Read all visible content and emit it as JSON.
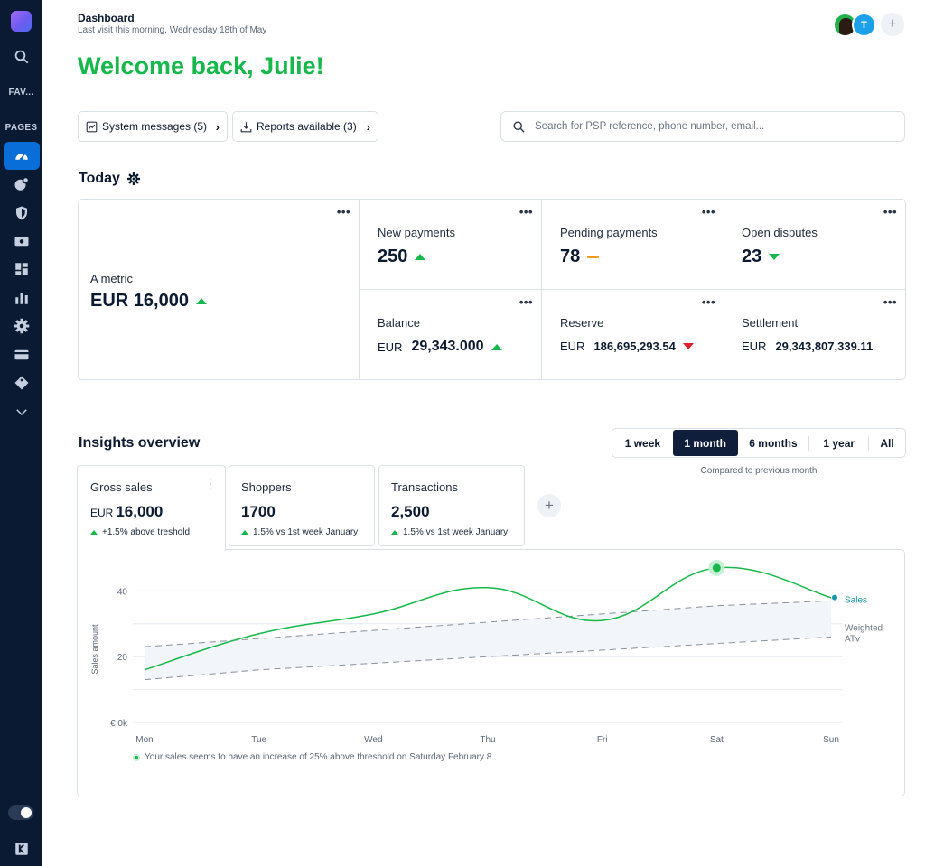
{
  "sidebar": {
    "fav_label": "FAV...",
    "pages_label": "PAGES",
    "icons": [
      "search-icon",
      "speedometer-icon",
      "pie-icon",
      "shield-icon",
      "cash-icon",
      "dashboard-grid-icon",
      "bar-chart-icon",
      "gear-icon",
      "card-icon",
      "tag-icon",
      "chevron-down-icon"
    ]
  },
  "header": {
    "title": "Dashboard",
    "subtitle": "Last visit this morning, Wednesday 18th of May",
    "avatar_initial": "T",
    "add_label": "+"
  },
  "welcome": "Welcome back, Julie!",
  "actions": {
    "system_messages": "System messages (5)",
    "reports_available": "Reports available (3)",
    "search_placeholder": "Search for PSP reference, phone number, email..."
  },
  "today": {
    "title": "Today",
    "dots": "•••",
    "main_metric": {
      "label": "A metric",
      "value": "EUR 16,000",
      "trend": "up"
    },
    "metrics": [
      {
        "label": "New payments",
        "value": "250",
        "currency": "",
        "trend": "up"
      },
      {
        "label": "Pending payments",
        "value": "78",
        "currency": "",
        "trend": "flat"
      },
      {
        "label": "Open disputes",
        "value": "23",
        "currency": "",
        "trend": "down"
      },
      {
        "label": "Balance",
        "value": "29,343.000",
        "currency": "EUR",
        "trend": "up"
      },
      {
        "label": "Reserve",
        "value": "186,695,293.54",
        "currency": "EUR",
        "trend": "down"
      },
      {
        "label": "Settlement",
        "value": "29,343,807,339.11",
        "currency": "EUR",
        "trend": "none"
      }
    ]
  },
  "insights": {
    "title": "Insights overview",
    "ranges": [
      "1 week",
      "1 month",
      "6 months",
      "1 year",
      "All"
    ],
    "selected_range": "1 month",
    "compared": "Compared to previous month",
    "tabs": [
      {
        "label": "Gross sales",
        "currency": "EUR",
        "value": "16,000",
        "note": "+1.5%  above treshold"
      },
      {
        "label": "Shoppers",
        "currency": "",
        "value": "1700",
        "note": "1.5%  vs 1st week January"
      },
      {
        "label": "Transactions",
        "currency": "",
        "value": "2,500",
        "note": "1.5%  vs 1st week January"
      }
    ],
    "add_tab": "+",
    "note": "Your sales seems to have an increase of 25% above threshold on Saturday February 8."
  },
  "chart_data": {
    "type": "line",
    "categories": [
      "Mon",
      "Tue",
      "Wed",
      "Thu",
      "Fri",
      "Sat",
      "Sun"
    ],
    "ylabel": "Sales amount",
    "y_ticks": [
      "€ 0k",
      "20",
      "40"
    ],
    "ylim": [
      0,
      50
    ],
    "series": [
      {
        "name": "Sales",
        "values": [
          16,
          27,
          33,
          41,
          31,
          47,
          38
        ],
        "color": "#17b84b"
      },
      {
        "name": "Weighted ATv",
        "values": [
          13,
          16,
          18,
          20,
          22,
          24,
          26
        ],
        "color": "#8a909b",
        "style": "dashed"
      }
    ],
    "band_upper": [
      23,
      25.5,
      28,
      30.5,
      33,
      35.5,
      37
    ],
    "highlight": {
      "category": "Sat",
      "value": 47
    },
    "grid": true,
    "colors": {
      "sales": "#17b84b",
      "weighted": "#8a909b",
      "band": "#f2f5f9",
      "label_sales": "#1597a8"
    }
  }
}
